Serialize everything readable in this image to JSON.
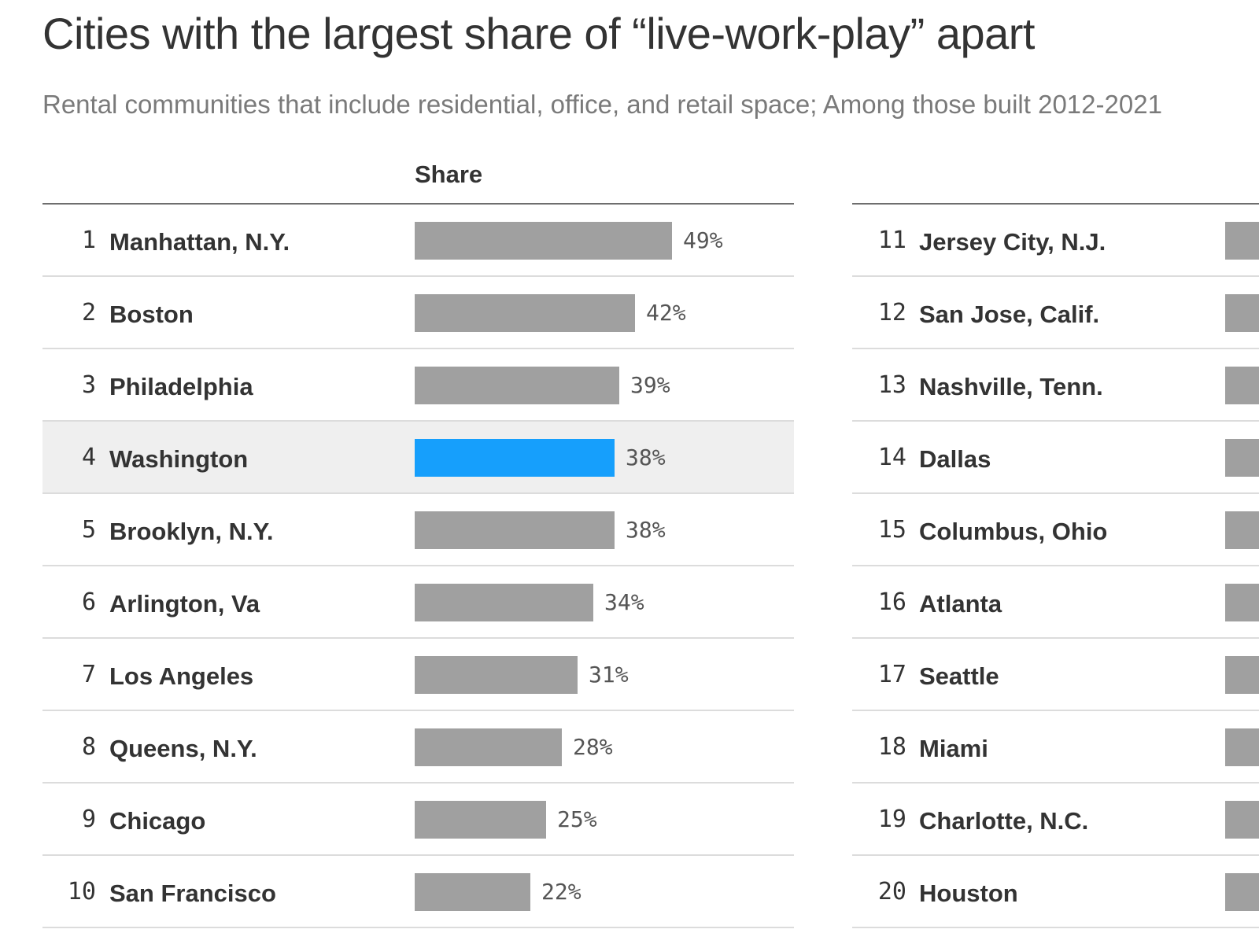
{
  "header": {
    "title": "Cities with the largest share of “live-work-play” apart",
    "subtitle": "Rental communities that include residential, office, and retail space; Among those built 2012-2021",
    "column_label": "Share"
  },
  "colors": {
    "bar_default": "#a0a0a0",
    "bar_highlight": "#169ffc",
    "row_highlight": "#efefef"
  },
  "chart_data": {
    "type": "bar",
    "orientation": "horizontal",
    "title": "Cities with the largest share of “live-work-play” apart",
    "subtitle": "Rental communities that include residential, office, and retail space; Among those built 2012-2021",
    "value_label": "Share",
    "unit": "%",
    "xlim": [
      0,
      60
    ],
    "highlighted": "Washington",
    "rows": [
      {
        "rank": "1",
        "city": "Manhattan, N.Y.",
        "value": 49,
        "label": "49%"
      },
      {
        "rank": "2",
        "city": "Boston",
        "value": 42,
        "label": "42%"
      },
      {
        "rank": "3",
        "city": "Philadelphia",
        "value": 39,
        "label": "39%"
      },
      {
        "rank": "4",
        "city": "Washington",
        "value": 38,
        "label": "38%",
        "highlight": true
      },
      {
        "rank": "5",
        "city": "Brooklyn, N.Y.",
        "value": 38,
        "label": "38%"
      },
      {
        "rank": "6",
        "city": "Arlington, Va",
        "value": 34,
        "label": "34%"
      },
      {
        "rank": "7",
        "city": "Los Angeles",
        "value": 31,
        "label": "31%"
      },
      {
        "rank": "8",
        "city": "Queens, N.Y.",
        "value": 28,
        "label": "28%"
      },
      {
        "rank": "9",
        "city": "Chicago",
        "value": 25,
        "label": "25%"
      },
      {
        "rank": "10",
        "city": "San Francisco",
        "value": 22,
        "label": "22%"
      },
      {
        "rank": "11",
        "city": "Jersey City, N.J."
      },
      {
        "rank": "12",
        "city": "San Jose, Calif."
      },
      {
        "rank": "13",
        "city": "Nashville, Tenn."
      },
      {
        "rank": "14",
        "city": "Dallas"
      },
      {
        "rank": "15",
        "city": "Columbus, Ohio"
      },
      {
        "rank": "16",
        "city": "Atlanta"
      },
      {
        "rank": "17",
        "city": "Seattle"
      },
      {
        "rank": "18",
        "city": "Miami"
      },
      {
        "rank": "19",
        "city": "Charlotte, N.C."
      },
      {
        "rank": "20",
        "city": "Houston"
      }
    ]
  }
}
